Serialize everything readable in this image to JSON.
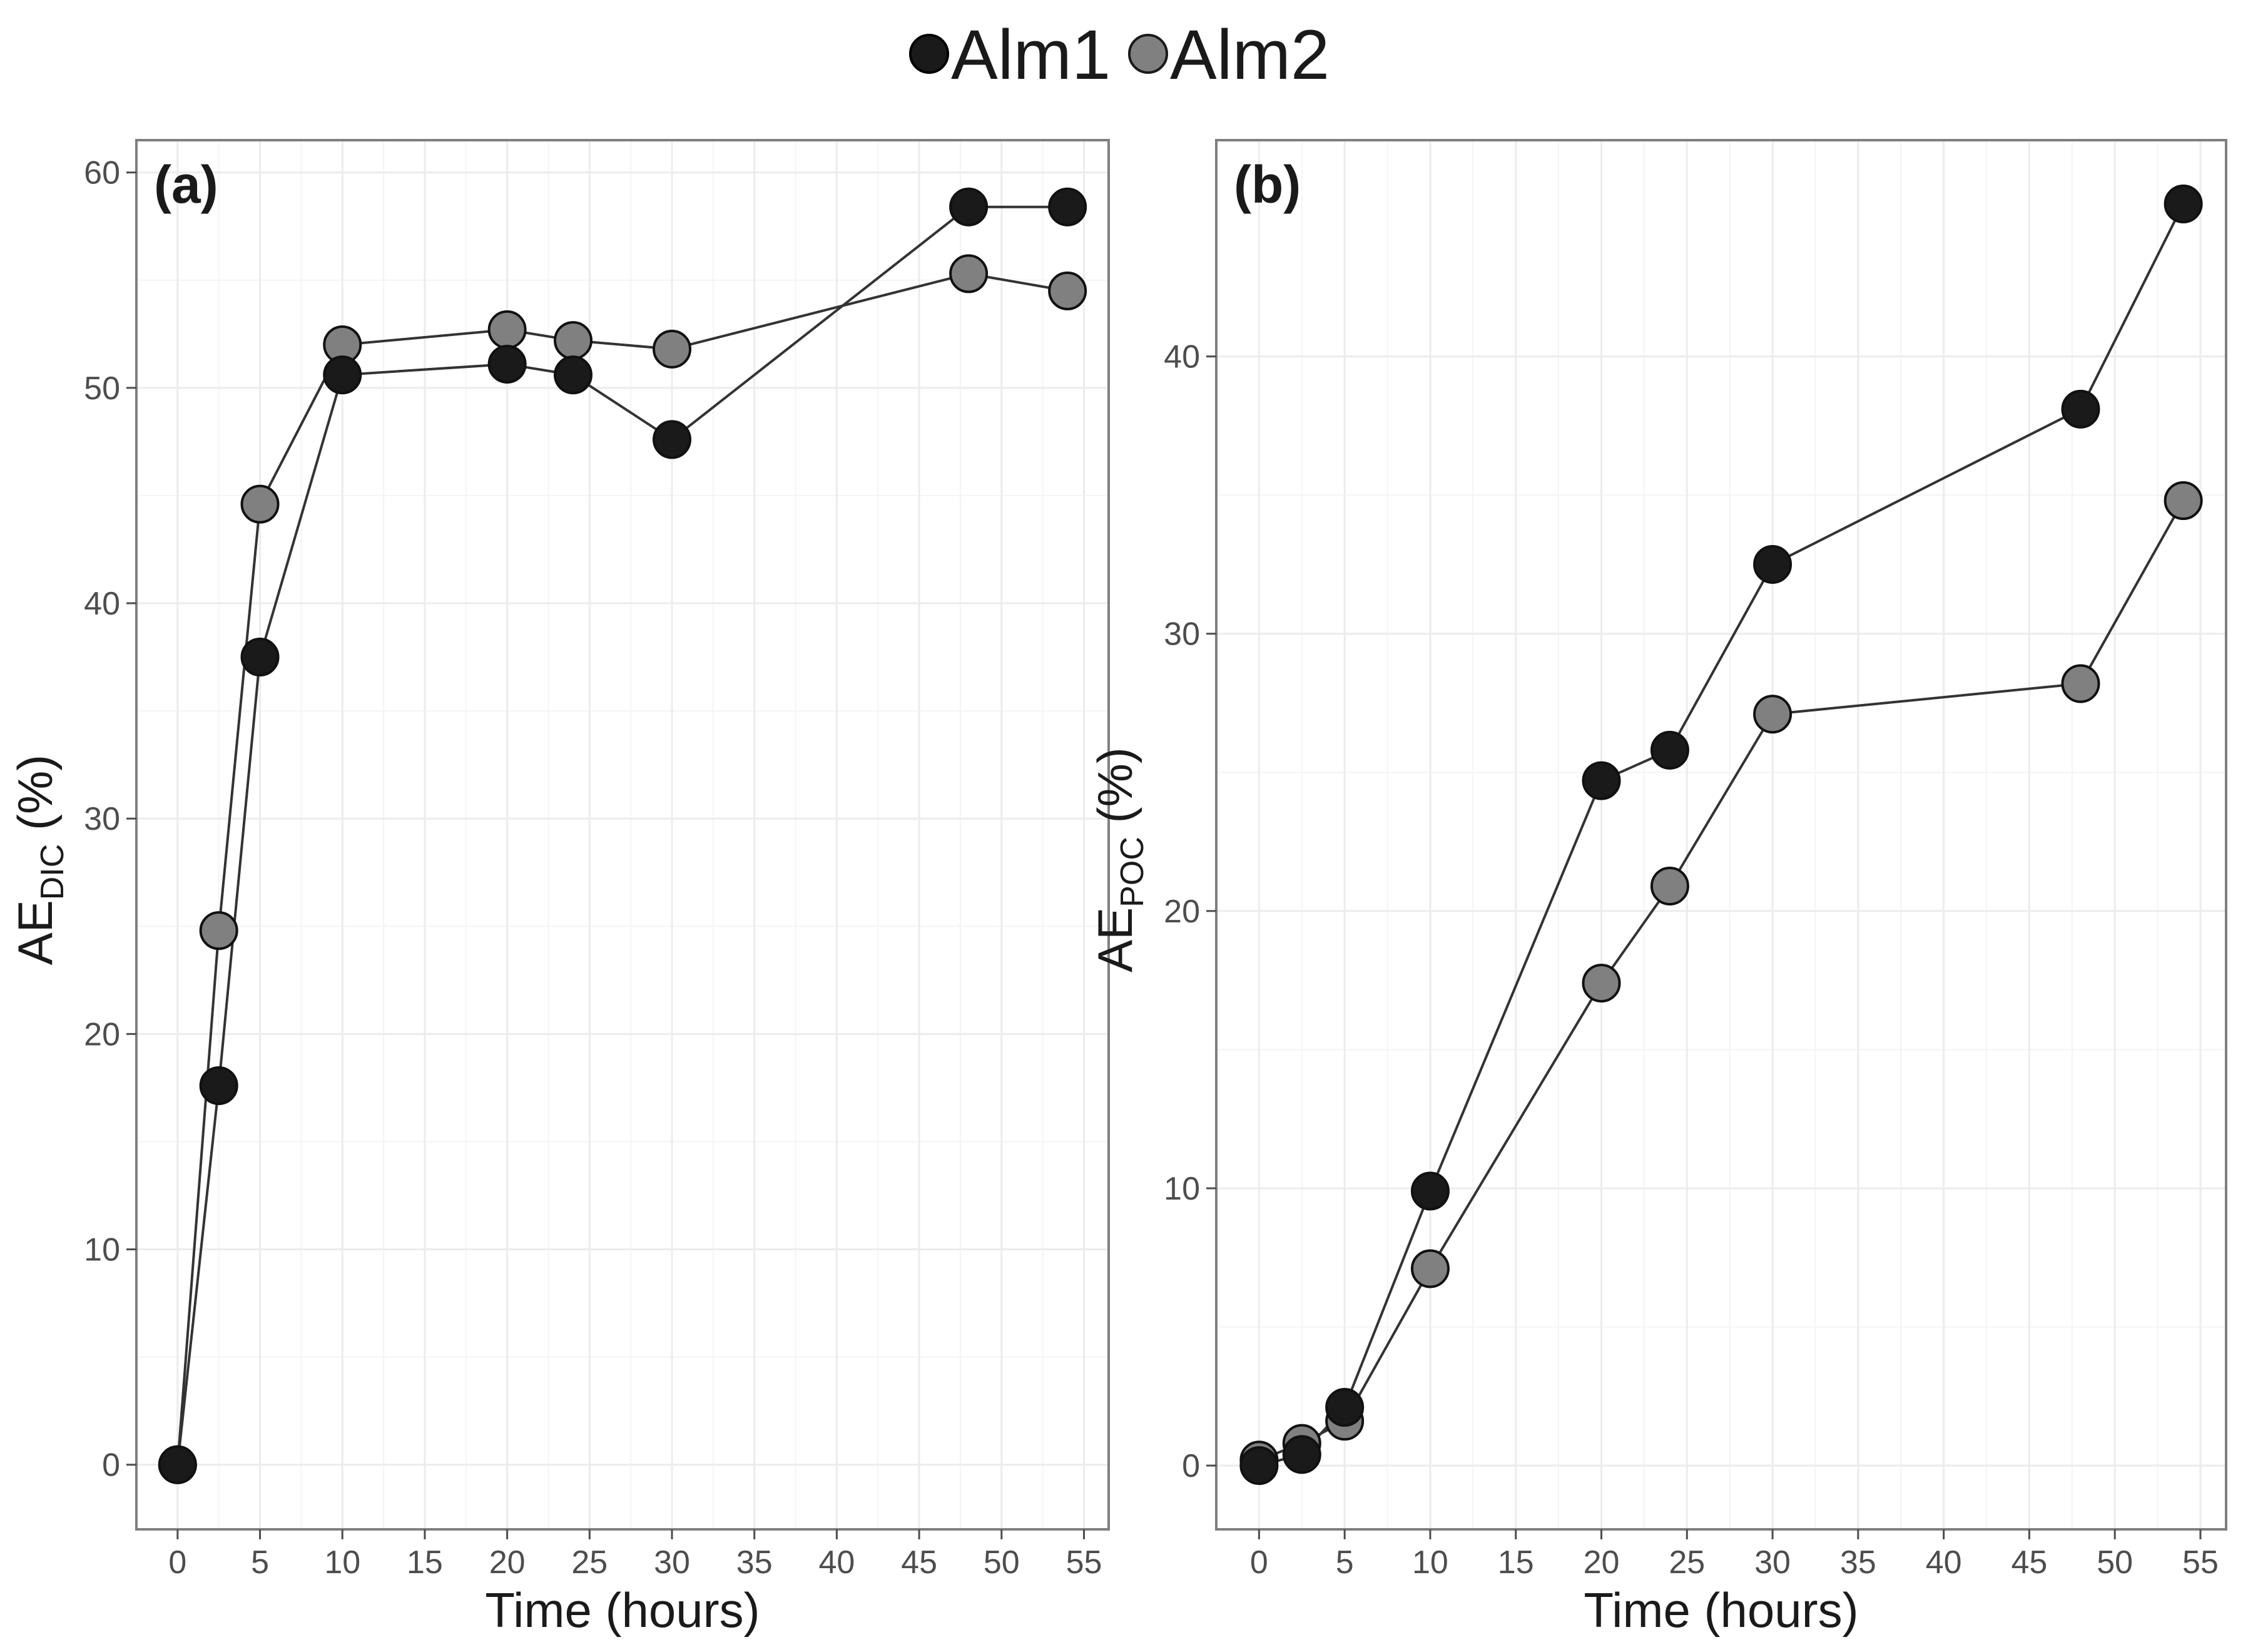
{
  "legend": [
    {
      "label": "Alm1",
      "color": "#1a1a1a"
    },
    {
      "label": "Alm2",
      "color": "#808080"
    }
  ],
  "chart_data": [
    {
      "type": "line",
      "panel_label": "(a)",
      "xlabel": "Time (hours)",
      "ylabel_main": "AE",
      "ylabel_sub": "DIC",
      "ylabel_suffix": " (%)",
      "xlim": [
        -2.5,
        56.5
      ],
      "ylim": [
        -3,
        61.5
      ],
      "xticks": [
        0,
        5,
        10,
        15,
        20,
        25,
        30,
        35,
        40,
        45,
        50,
        55
      ],
      "yticks": [
        0,
        10,
        20,
        30,
        40,
        50,
        60
      ],
      "series": [
        {
          "name": "Alm1",
          "color": "#1a1a1a",
          "x": [
            0,
            2.5,
            5,
            10,
            20,
            24,
            30,
            48,
            54
          ],
          "y": [
            0,
            17.6,
            37.5,
            50.6,
            51.1,
            50.6,
            47.6,
            58.4,
            58.4
          ]
        },
        {
          "name": "Alm2",
          "color": "#808080",
          "x": [
            0,
            2.5,
            5,
            10,
            20,
            24,
            30,
            48,
            54
          ],
          "y": [
            0,
            24.8,
            44.6,
            52.0,
            52.7,
            52.2,
            51.8,
            55.3,
            54.5
          ]
        }
      ]
    },
    {
      "type": "line",
      "panel_label": "(b)",
      "xlabel": "Time (hours)",
      "ylabel_main": "AE",
      "ylabel_sub": "POC",
      "ylabel_suffix": " (%)",
      "xlim": [
        -2.5,
        56.5
      ],
      "ylim": [
        -2.3,
        47.8
      ],
      "xticks": [
        0,
        5,
        10,
        15,
        20,
        25,
        30,
        35,
        40,
        45,
        50,
        55
      ],
      "yticks": [
        0,
        10,
        20,
        30,
        40
      ],
      "series": [
        {
          "name": "Alm1",
          "color": "#1a1a1a",
          "x": [
            0,
            2.5,
            5,
            10,
            20,
            24,
            30,
            48,
            54
          ],
          "y": [
            0,
            0.4,
            2.1,
            9.9,
            24.7,
            25.8,
            32.5,
            38.1,
            45.5
          ]
        },
        {
          "name": "Alm2",
          "color": "#808080",
          "x": [
            0,
            2.5,
            5,
            10,
            20,
            24,
            30,
            48,
            54
          ],
          "y": [
            0.2,
            0.8,
            1.6,
            7.1,
            17.4,
            20.9,
            27.1,
            28.2,
            34.8
          ]
        }
      ]
    }
  ]
}
